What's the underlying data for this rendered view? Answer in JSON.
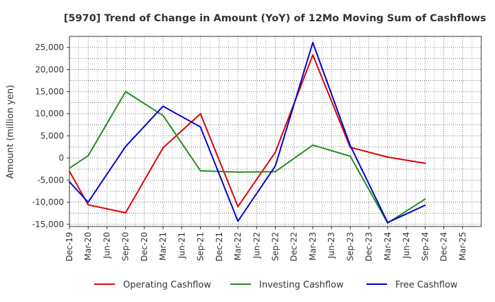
{
  "chart_data": {
    "type": "line",
    "title": "[5970]  Trend of Change in Amount (YoY) of 12Mo Moving Sum of Cashflows",
    "ylabel": "Amount (million yen)",
    "xlabel": "",
    "ylim": [
      -15500,
      27500
    ],
    "yticks": [
      25000,
      20000,
      15000,
      10000,
      5000,
      0,
      -5000,
      -10000,
      -15000
    ],
    "ytick_labels": [
      "25,000",
      "20,000",
      "15,000",
      "10,000",
      "5,000",
      "0",
      "-5,000",
      "-10,000",
      "-15,000"
    ],
    "categories": [
      "Dec-19",
      "Mar-20",
      "Jun-20",
      "Sep-20",
      "Dec-20",
      "Mar-21",
      "Jun-21",
      "Sep-21",
      "Dec-21",
      "Mar-22",
      "Jun-22",
      "Sep-22",
      "Dec-22",
      "Mar-23",
      "Jun-23",
      "Sep-23",
      "Dec-23",
      "Mar-24",
      "Jun-24",
      "Sep-24",
      "Dec-24",
      "Mar-25"
    ],
    "grid": true,
    "legend_position": "bottom",
    "series": [
      {
        "name": "Operating Cashflow",
        "color": "#dd0000",
        "values": [
          -3000,
          -10600,
          null,
          -12400,
          null,
          2300,
          null,
          10000,
          null,
          -11000,
          null,
          1300,
          null,
          23300,
          null,
          2400,
          null,
          200,
          null,
          -1200,
          null,
          null
        ]
      },
      {
        "name": "Investing Cashflow",
        "color": "#228b22",
        "values": [
          -2300,
          500,
          null,
          15000,
          null,
          9600,
          null,
          -2900,
          null,
          -3200,
          null,
          -3100,
          null,
          2900,
          null,
          400,
          null,
          -14700,
          null,
          -9300,
          null,
          null
        ]
      },
      {
        "name": "Free Cashflow",
        "color": "#0000cc",
        "values": [
          -5400,
          -10000,
          null,
          2600,
          null,
          11700,
          null,
          7000,
          null,
          -14300,
          null,
          -1800,
          null,
          26100,
          null,
          2800,
          null,
          -14600,
          null,
          -10700,
          null,
          null
        ]
      }
    ]
  }
}
